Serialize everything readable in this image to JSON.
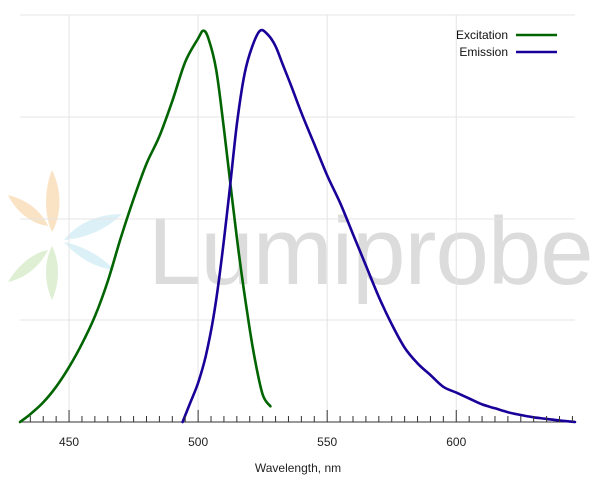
{
  "chart_data": {
    "type": "line",
    "title": "",
    "xlabel": "Wavelength, nm",
    "ylabel": "",
    "xlim": [
      431,
      646
    ],
    "ylim": [
      0,
      1.04
    ],
    "xticks": [
      450,
      500,
      550,
      600
    ],
    "x_tick_labels": [
      "450",
      "500",
      "550",
      "600"
    ],
    "grid": true,
    "legend_position": "top-right",
    "watermark": "Lumiprobe",
    "series": [
      {
        "name": "Excitation",
        "color": "#006400",
        "x": [
          431,
          435,
          440,
          445,
          450,
          455,
          460,
          465,
          470,
          475,
          480,
          485,
          490,
          495,
          500,
          502,
          504,
          507,
          510,
          513,
          516,
          519,
          522,
          525,
          528
        ],
        "y": [
          0.0,
          0.02,
          0.05,
          0.09,
          0.14,
          0.2,
          0.27,
          0.36,
          0.47,
          0.57,
          0.66,
          0.73,
          0.82,
          0.92,
          0.98,
          1.0,
          0.98,
          0.9,
          0.75,
          0.58,
          0.42,
          0.28,
          0.16,
          0.07,
          0.04
        ]
      },
      {
        "name": "Emission",
        "color": "#1a0099",
        "x": [
          494,
          497,
          500,
          503,
          506,
          509,
          512,
          515,
          518,
          521,
          524,
          527,
          530,
          533,
          536,
          540,
          545,
          550,
          555,
          560,
          565,
          570,
          575,
          580,
          585,
          590,
          595,
          600,
          605,
          610,
          615,
          620,
          625,
          630,
          635,
          640,
          646
        ],
        "y": [
          0.0,
          0.05,
          0.1,
          0.17,
          0.27,
          0.41,
          0.58,
          0.76,
          0.89,
          0.96,
          1.0,
          0.99,
          0.96,
          0.91,
          0.86,
          0.79,
          0.71,
          0.63,
          0.56,
          0.48,
          0.4,
          0.32,
          0.25,
          0.19,
          0.15,
          0.12,
          0.09,
          0.075,
          0.06,
          0.045,
          0.035,
          0.025,
          0.018,
          0.012,
          0.008,
          0.004,
          0.0
        ]
      }
    ]
  }
}
